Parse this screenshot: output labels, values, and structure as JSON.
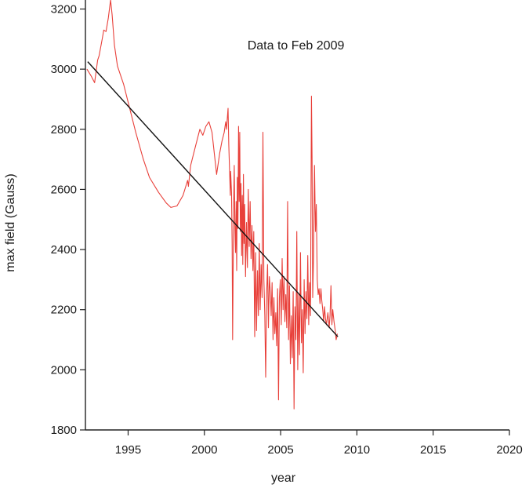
{
  "chart_data": {
    "type": "line",
    "title": "",
    "xlabel": "year",
    "ylabel": "max field (Gauss)",
    "xlim": [
      1992.2,
      2020
    ],
    "ylim": [
      1800,
      3230
    ],
    "xticks": [
      1995,
      2000,
      2005,
      2010,
      2015,
      2020
    ],
    "yticks": [
      1800,
      2000,
      2200,
      2400,
      2600,
      2800,
      3000,
      3200
    ],
    "grid": false,
    "annotations": [
      {
        "text": "Data to Feb 2009",
        "x": 2006.0,
        "y": 3065
      }
    ],
    "series": [
      {
        "type": "line",
        "color": "#e8403a",
        "points": [
          [
            1992.3,
            3000
          ],
          [
            1992.6,
            2975
          ],
          [
            1992.8,
            2955
          ],
          [
            1993.0,
            3030
          ],
          [
            1993.1,
            3045
          ],
          [
            1993.3,
            3100
          ],
          [
            1993.4,
            3130
          ],
          [
            1993.55,
            3125
          ],
          [
            1993.7,
            3170
          ],
          [
            1993.85,
            3230
          ],
          [
            1993.95,
            3180
          ],
          [
            1994.1,
            3080
          ],
          [
            1994.3,
            3010
          ],
          [
            1994.7,
            2950
          ],
          [
            1995.0,
            2890
          ],
          [
            1995.5,
            2790
          ],
          [
            1996.0,
            2700
          ],
          [
            1996.4,
            2640
          ],
          [
            1997.0,
            2590
          ],
          [
            1997.5,
            2555
          ],
          [
            1997.8,
            2540
          ],
          [
            1998.2,
            2545
          ],
          [
            1998.6,
            2580
          ],
          [
            1998.9,
            2630
          ],
          [
            1998.95,
            2610
          ],
          [
            1999.1,
            2680
          ],
          [
            1999.4,
            2740
          ],
          [
            1999.7,
            2800
          ],
          [
            1999.9,
            2780
          ],
          [
            2000.1,
            2810
          ],
          [
            2000.3,
            2825
          ],
          [
            2000.5,
            2790
          ],
          [
            2000.8,
            2650
          ],
          [
            2001.0,
            2720
          ],
          [
            2001.15,
            2760
          ],
          [
            2001.3,
            2790
          ],
          [
            2001.4,
            2825
          ],
          [
            2001.45,
            2800
          ],
          [
            2001.55,
            2870
          ],
          [
            2001.6,
            2750
          ],
          [
            2001.7,
            2580
          ],
          [
            2001.72,
            2660
          ],
          [
            2001.78,
            2590
          ],
          [
            2001.82,
            2420
          ],
          [
            2001.85,
            2100
          ],
          [
            2001.88,
            2300
          ],
          [
            2001.92,
            2560
          ],
          [
            2001.96,
            2680
          ],
          [
            2002.0,
            2480
          ],
          [
            2002.04,
            2390
          ],
          [
            2002.08,
            2560
          ],
          [
            2002.12,
            2330
          ],
          [
            2002.16,
            2640
          ],
          [
            2002.2,
            2470
          ],
          [
            2002.24,
            2810
          ],
          [
            2002.28,
            2560
          ],
          [
            2002.32,
            2790
          ],
          [
            2002.36,
            2460
          ],
          [
            2002.4,
            2620
          ],
          [
            2002.44,
            2380
          ],
          [
            2002.48,
            2580
          ],
          [
            2002.52,
            2350
          ],
          [
            2002.56,
            2650
          ],
          [
            2002.6,
            2420
          ],
          [
            2002.64,
            2550
          ],
          [
            2002.7,
            2310
          ],
          [
            2002.76,
            2490
          ],
          [
            2002.82,
            2340
          ],
          [
            2002.88,
            2600
          ],
          [
            2002.94,
            2410
          ],
          [
            2003.0,
            2560
          ],
          [
            2003.06,
            2370
          ],
          [
            2003.12,
            2480
          ],
          [
            2003.18,
            2330
          ],
          [
            2003.24,
            2460
          ],
          [
            2003.3,
            2110
          ],
          [
            2003.36,
            2390
          ],
          [
            2003.42,
            2130
          ],
          [
            2003.48,
            2330
          ],
          [
            2003.54,
            2180
          ],
          [
            2003.6,
            2420
          ],
          [
            2003.66,
            2200
          ],
          [
            2003.72,
            2350
          ],
          [
            2003.78,
            2240
          ],
          [
            2003.84,
            2790
          ],
          [
            2003.9,
            2300
          ],
          [
            2003.96,
            2180
          ],
          [
            2004.02,
            1975
          ],
          [
            2004.08,
            2250
          ],
          [
            2004.14,
            2350
          ],
          [
            2004.2,
            2140
          ],
          [
            2004.26,
            2310
          ],
          [
            2004.32,
            2260
          ],
          [
            2004.38,
            2180
          ],
          [
            2004.44,
            2290
          ],
          [
            2004.5,
            2100
          ],
          [
            2004.56,
            2240
          ],
          [
            2004.62,
            2120
          ],
          [
            2004.68,
            2190
          ],
          [
            2004.74,
            2080
          ],
          [
            2004.8,
            2270
          ],
          [
            2004.86,
            1900
          ],
          [
            2004.92,
            2240
          ],
          [
            2004.98,
            2300
          ],
          [
            2005.04,
            2150
          ],
          [
            2005.1,
            2370
          ],
          [
            2005.16,
            2200
          ],
          [
            2005.22,
            2310
          ],
          [
            2005.28,
            2160
          ],
          [
            2005.34,
            2250
          ],
          [
            2005.4,
            2140
          ],
          [
            2005.46,
            2560
          ],
          [
            2005.52,
            2100
          ],
          [
            2005.58,
            2280
          ],
          [
            2005.64,
            2020
          ],
          [
            2005.7,
            2180
          ],
          [
            2005.76,
            2040
          ],
          [
            2005.82,
            2260
          ],
          [
            2005.88,
            1870
          ],
          [
            2005.94,
            2210
          ],
          [
            2006.0,
            2100
          ],
          [
            2006.06,
            2460
          ],
          [
            2006.12,
            2000
          ],
          [
            2006.18,
            2250
          ],
          [
            2006.24,
            2050
          ],
          [
            2006.3,
            2390
          ],
          [
            2006.36,
            2090
          ],
          [
            2006.42,
            2200
          ],
          [
            2006.48,
            1990
          ],
          [
            2006.54,
            2300
          ],
          [
            2006.6,
            2120
          ],
          [
            2006.66,
            2260
          ],
          [
            2006.72,
            2170
          ],
          [
            2006.78,
            2380
          ],
          [
            2006.84,
            2150
          ],
          [
            2006.9,
            2290
          ],
          [
            2006.96,
            2180
          ],
          [
            2007.02,
            2910
          ],
          [
            2007.06,
            2700
          ],
          [
            2007.1,
            2240
          ],
          [
            2007.16,
            2380
          ],
          [
            2007.22,
            2680
          ],
          [
            2007.28,
            2460
          ],
          [
            2007.34,
            2550
          ],
          [
            2007.4,
            2300
          ],
          [
            2007.46,
            2250
          ],
          [
            2007.52,
            2270
          ],
          [
            2007.58,
            2220
          ],
          [
            2007.64,
            2270
          ],
          [
            2007.7,
            2230
          ],
          [
            2007.76,
            2200
          ],
          [
            2007.82,
            2160
          ],
          [
            2007.88,
            2210
          ],
          [
            2007.94,
            2170
          ],
          [
            2008.0,
            2150
          ],
          [
            2008.1,
            2190
          ],
          [
            2008.18,
            2140
          ],
          [
            2008.24,
            2180
          ],
          [
            2008.3,
            2280
          ],
          [
            2008.36,
            2150
          ],
          [
            2008.42,
            2200
          ],
          [
            2008.5,
            2160
          ],
          [
            2008.58,
            2130
          ],
          [
            2008.64,
            2100
          ],
          [
            2008.72,
            2120
          ]
        ]
      },
      {
        "type": "line",
        "color": "#111111",
        "points": [
          [
            1992.35,
            3025
          ],
          [
            2008.75,
            2110
          ]
        ]
      }
    ]
  }
}
